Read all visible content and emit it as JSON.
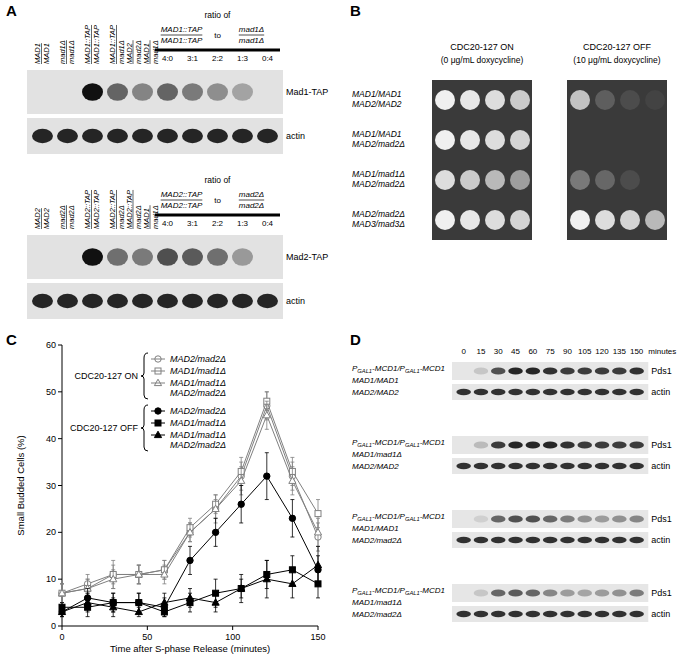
{
  "panel_a": {
    "label": "A",
    "blots": [
      {
        "lanes": [
          [
            {
              "top": "MAD1",
              "bottom": "MAD1"
            }
          ],
          [
            {
              "top": "mad1Δ",
              "bottom": "mad1Δ"
            }
          ],
          [
            {
              "top": "MAD1::TAP",
              "bottom": "MAD1::TAP"
            }
          ],
          [
            {
              "top": "MAD1::TAP",
              "bottom": "mad1Δ"
            }
          ],
          [
            {
              "top": "MAD2",
              "bottom": "mad2Δ"
            },
            {
              "top": "MAD1",
              "bottom": "mad1Δ"
            }
          ]
        ],
        "ratio_title": "ratio of",
        "ratio_fractions": [
          {
            "top": "MAD1::TAP",
            "bottom": "MAD1::TAP"
          },
          {
            "top": "mad1Δ",
            "bottom": "mad1Δ"
          }
        ],
        "ratio_joiner": "to",
        "ratios": [
          "4:0",
          "3:1",
          "2:2",
          "1:3",
          "0:4"
        ],
        "rows": [
          {
            "label": "Mad1-TAP",
            "intensity": [
              0,
              0,
              1.0,
              0.6,
              0.45,
              0.6,
              0.5,
              0.4,
              0.3,
              0
            ]
          },
          {
            "label": "actin",
            "intensity": [
              0.9,
              0.9,
              0.9,
              0.9,
              0.9,
              0.9,
              0.9,
              0.9,
              0.9,
              0.9
            ]
          }
        ]
      },
      {
        "lanes": [
          [
            {
              "top": "MAD2",
              "bottom": "MAD2"
            }
          ],
          [
            {
              "top": "mad2Δ",
              "bottom": "mad2Δ"
            }
          ],
          [
            {
              "top": "MAD2::TAP",
              "bottom": "MAD2::TAP"
            }
          ],
          [
            {
              "top": "MAD2::TAP",
              "bottom": "mad2Δ"
            }
          ],
          [
            {
              "top": "MAD2::TAP",
              "bottom": "mad2Δ"
            },
            {
              "top": "MAD1",
              "bottom": "mad1Δ"
            }
          ]
        ],
        "ratio_title": "ratio of",
        "ratio_fractions": [
          {
            "top": "MAD2::TAP",
            "bottom": "MAD2::TAP"
          },
          {
            "top": "mad2Δ",
            "bottom": "mad2Δ"
          }
        ],
        "ratio_joiner": "to",
        "ratios": [
          "4:0",
          "3:1",
          "2:2",
          "1:3",
          "0:4"
        ],
        "rows": [
          {
            "label": "Mad2-TAP",
            "intensity": [
              0,
              0,
              1.0,
              0.55,
              0.5,
              0.7,
              0.65,
              0.55,
              0.35,
              0
            ]
          },
          {
            "label": "actin",
            "intensity": [
              0.9,
              0.9,
              0.9,
              0.9,
              0.9,
              0.9,
              0.9,
              0.9,
              0.9,
              0.9
            ]
          }
        ]
      }
    ]
  },
  "panel_b": {
    "label": "B",
    "columns": [
      {
        "title": "CDC20-127 ON",
        "subtitle": "(0 μg/mL doxycycline)"
      },
      {
        "title": "CDC20-127 OFF",
        "subtitle": "(10 μg/mL doxycycline)"
      }
    ],
    "rows": [
      {
        "genotype": [
          "MAD1/MAD1",
          "MAD2/MAD2"
        ],
        "growth": [
          [
            1,
            0.95,
            0.9,
            0.8
          ],
          [
            0.75,
            0.2,
            0.1,
            0.05
          ]
        ]
      },
      {
        "genotype": [
          "MAD1/MAD1",
          "MAD2/mad2Δ"
        ],
        "growth": [
          [
            1,
            0.95,
            0.9,
            0.85
          ],
          [
            0,
            0,
            0,
            0
          ]
        ]
      },
      {
        "genotype": [
          "MAD1/mad1Δ",
          "MAD2/mad2Δ"
        ],
        "growth": [
          [
            0.9,
            0.8,
            0.7,
            0.55
          ],
          [
            0.35,
            0.25,
            0.1,
            0
          ]
        ]
      },
      {
        "genotype": [
          "MAD2/mad2Δ",
          "MAD3/mad3Δ"
        ],
        "growth": [
          [
            1,
            0.95,
            0.9,
            0.85
          ],
          [
            1,
            0.9,
            0.85,
            0.7
          ]
        ]
      }
    ]
  },
  "chart_data": {
    "type": "line",
    "label": "C",
    "x": [
      0,
      15,
      30,
      45,
      60,
      75,
      90,
      105,
      120,
      135,
      150
    ],
    "xlim": [
      0,
      150
    ],
    "xticks": [
      0,
      50,
      100,
      150
    ],
    "ylim": [
      0,
      60
    ],
    "yticks": [
      0,
      10,
      20,
      30,
      40,
      50,
      60
    ],
    "x_label": "Time after S-phase Release (minutes)",
    "y_label": "Small Budded Cells (%)",
    "legend_groups": [
      {
        "label": "CDC20-127 ON",
        "series": [
          0,
          1,
          2
        ]
      },
      {
        "label": "CDC20-127 OFF",
        "series": [
          3,
          4,
          5
        ]
      }
    ],
    "series": [
      {
        "name": "MAD2/mad2Δ",
        "color": "#808080",
        "marker": "open-circle",
        "values": [
          7,
          9,
          11,
          11,
          12,
          20,
          25,
          32,
          47,
          32,
          19
        ],
        "errors": [
          2,
          2,
          3,
          2,
          2,
          2,
          3,
          3,
          3,
          3,
          3
        ]
      },
      {
        "name": "MAD1/mad1Δ",
        "color": "#808080",
        "marker": "open-square",
        "values": [
          7,
          8,
          11,
          11,
          12,
          21,
          26,
          33,
          48,
          33,
          24
        ],
        "errors": [
          2,
          2,
          2,
          2,
          2,
          2,
          2,
          3,
          2,
          3,
          3
        ]
      },
      {
        "name": "MAD1/mad1Δ MAD2/mad2Δ",
        "color": "#808080",
        "marker": "open-triangle",
        "values": [
          7,
          8,
          10,
          11,
          11,
          20,
          25,
          31,
          45,
          31,
          20
        ],
        "errors": [
          2,
          2,
          2,
          2,
          2,
          2,
          2,
          3,
          3,
          3,
          3
        ]
      },
      {
        "name": "MAD2/mad2Δ",
        "color": "#000000",
        "marker": "circle",
        "values": [
          3,
          6,
          5,
          5,
          4,
          14,
          20,
          26,
          32,
          23,
          12
        ],
        "errors": [
          1,
          2,
          2,
          2,
          2,
          3,
          3,
          4,
          5,
          4,
          3
        ]
      },
      {
        "name": "MAD1/mad1Δ",
        "color": "#000000",
        "marker": "square",
        "values": [
          4,
          4,
          5,
          5,
          3,
          5,
          7,
          8,
          11,
          12,
          9
        ],
        "errors": [
          1,
          2,
          2,
          2,
          1,
          2,
          3,
          2,
          3,
          3,
          3
        ]
      },
      {
        "name": "MAD1/mad1Δ MAD2/mad2Δ",
        "color": "#000000",
        "marker": "triangle",
        "values": [
          3,
          5,
          4,
          3,
          5,
          6,
          5,
          8,
          10,
          9,
          13
        ],
        "errors": [
          1,
          2,
          2,
          1,
          2,
          2,
          2,
          3,
          4,
          3,
          4
        ]
      }
    ]
  },
  "panel_d": {
    "label": "D",
    "times": [
      0,
      15,
      30,
      45,
      60,
      75,
      90,
      105,
      120,
      135,
      150
    ],
    "time_unit": "minutes",
    "blots": [
      {
        "genotype": [
          [
            "P",
            {
              "sub": "GAL1"
            },
            "-MCD1/P",
            {
              "sub": "GAL1"
            },
            "-MCD1"
          ],
          [
            "MAD1/MAD1"
          ],
          [
            "MAD2/MAD2"
          ]
        ],
        "rows": [
          {
            "label": "Pds1",
            "intensity": [
              0,
              0.15,
              0.7,
              0.9,
              0.9,
              0.85,
              0.8,
              0.8,
              0.8,
              0.8,
              0.85
            ]
          },
          {
            "label": "actin",
            "intensity": [
              0.85,
              0.85,
              0.85,
              0.85,
              0.85,
              0.85,
              0.85,
              0.85,
              0.85,
              0.85,
              0.85
            ]
          }
        ]
      },
      {
        "genotype": [
          [
            "P",
            {
              "sub": "GAL1"
            },
            "-MCD1/P",
            {
              "sub": "GAL1"
            },
            "-MCD1"
          ],
          [
            "MAD1/mad1Δ"
          ],
          [
            "MAD2/MAD2"
          ]
        ],
        "rows": [
          {
            "label": "Pds1",
            "intensity": [
              0,
              0.2,
              0.8,
              0.9,
              0.9,
              0.9,
              0.85,
              0.8,
              0.8,
              0.8,
              0.8
            ]
          },
          {
            "label": "actin",
            "intensity": [
              0.85,
              0.85,
              0.85,
              0.85,
              0.85,
              0.85,
              0.85,
              0.85,
              0.85,
              0.85,
              0.85
            ]
          }
        ]
      },
      {
        "genotype": [
          [
            "P",
            {
              "sub": "GAL1"
            },
            "-MCD1/P",
            {
              "sub": "GAL1"
            },
            "-MCD1"
          ],
          [
            "MAD1/MAD1"
          ],
          [
            "MAD2/mad2Δ"
          ]
        ],
        "rows": [
          {
            "label": "Pds1",
            "intensity": [
              0,
              0.1,
              0.6,
              0.7,
              0.7,
              0.6,
              0.5,
              0.4,
              0.35,
              0.4,
              0.45
            ]
          },
          {
            "label": "actin",
            "intensity": [
              0.85,
              0.85,
              0.85,
              0.85,
              0.85,
              0.85,
              0.85,
              0.85,
              0.85,
              0.85,
              0.85
            ]
          }
        ]
      },
      {
        "genotype": [
          [
            "P",
            {
              "sub": "GAL1"
            },
            "-MCD1/P",
            {
              "sub": "GAL1"
            },
            "-MCD1"
          ],
          [
            "MAD1/mad1Δ"
          ],
          [
            "MAD2/mad2Δ"
          ]
        ],
        "rows": [
          {
            "label": "Pds1",
            "intensity": [
              0,
              0.15,
              0.6,
              0.65,
              0.6,
              0.45,
              0.35,
              0.3,
              0.35,
              0.4,
              0.5
            ]
          },
          {
            "label": "actin",
            "intensity": [
              0.85,
              0.85,
              0.85,
              0.85,
              0.85,
              0.85,
              0.85,
              0.85,
              0.85,
              0.85,
              0.85
            ]
          }
        ]
      }
    ]
  }
}
